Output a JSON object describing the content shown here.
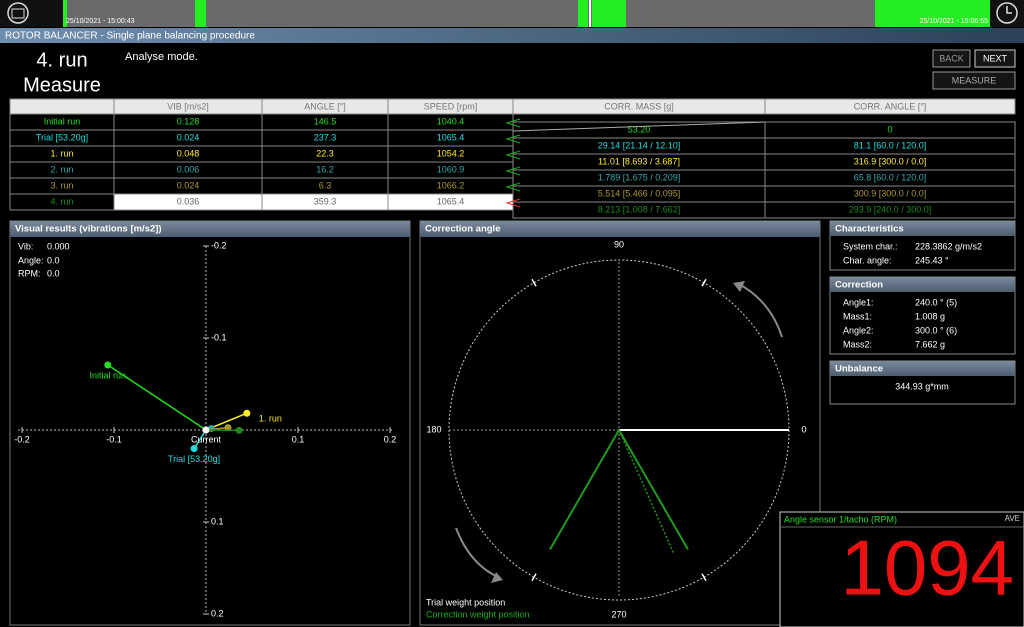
{
  "timeline": {
    "start": "25/10/2021 - 15:00:43",
    "end": "25/10/2021 - 15:06:55"
  },
  "title_bar": "ROTOR BALANCER - Single plane balancing procedure",
  "step": {
    "title": "4. run",
    "subtitle": "Measure",
    "mode": "Analyse mode."
  },
  "buttons": [
    "BACK",
    "NEXT",
    "MEASURE"
  ],
  "table": {
    "columns": [
      "VIB [m/s2]",
      "ANGLE [°]",
      "SPEED [rpm]"
    ],
    "corr_columns": [
      "CORR. MASS [g]",
      "CORR. ANGLE [°]"
    ],
    "rows": [
      {
        "name": "Initial run",
        "color": "#22dd22",
        "vib": 0.128,
        "angle": 146.5,
        "speed": 1040.4,
        "corr_mass": "53.20",
        "corr_angle": "0"
      },
      {
        "name": "Trial [53.20g]",
        "color": "#22dddd",
        "vib": 0.024,
        "angle": 237.3,
        "speed": 1065.4,
        "corr_mass": "29.14 [21.14 / 12.10]",
        "corr_angle": "81.1 [60.0 / 120.0]"
      },
      {
        "name": "1. run",
        "color": "#ffee22",
        "vib": 0.048,
        "angle": 22.3,
        "speed": 1054.2,
        "corr_mass": "11.01 [8.693 / 3.687]",
        "corr_angle": "316.9 [300.0 / 0.0]"
      },
      {
        "name": "2. run",
        "color": "#33aaaa",
        "vib": 0.006,
        "angle": 16.2,
        "speed": 1060.9,
        "corr_mass": "1.789 [1.675 / 0.209]",
        "corr_angle": "65.8 [60.0 / 120.0]"
      },
      {
        "name": "3. run",
        "color": "#aa9933",
        "vib": 0.024,
        "angle": 6.3,
        "speed": 1066.2,
        "corr_mass": "5.514 [5.466 / 0.095]",
        "corr_angle": "300.9 [300.0 / 0.0]"
      },
      {
        "name": "4. run",
        "color": "#1e8a1e",
        "vib": 0.036,
        "angle": 359.3,
        "speed": 1065.4,
        "corr_mass": "8.213 [1.008 / 7.662]",
        "corr_angle": "293.9 [240.0 / 300.0]"
      }
    ]
  },
  "visual": {
    "title": "Visual results (vibrations [m/s2])",
    "vib_label": "Vib:",
    "vib": "0.000",
    "angle_label": "Angle:",
    "angle": "0.0",
    "rpm_label": "RPM:",
    "rpm": "0.0",
    "current_label": "Current",
    "xticks": [
      -0.2,
      -0.1,
      0.1,
      0.2
    ],
    "yticks": [
      -0.2,
      -0.1,
      0.1,
      0.2
    ]
  },
  "correction_plot": {
    "title": "Correction angle",
    "labels": [
      "0",
      "90",
      "180",
      "270"
    ],
    "legend_trial": "Trial weight position",
    "legend_correction": "Correction weight position"
  },
  "characteristics": {
    "title": "Characteristics",
    "items": [
      {
        "label": "System char.:",
        "value": "228.3862 g/m/s2"
      },
      {
        "label": "Char. angle:",
        "value": "245.43 °"
      }
    ]
  },
  "correction": {
    "title": "Correction",
    "items": [
      {
        "label": "Angle1:",
        "value": "240.0 ° (5)"
      },
      {
        "label": "Mass1:",
        "value": "1.008 g"
      },
      {
        "label": "Angle2:",
        "value": "300.0 ° (6)"
      },
      {
        "label": "Mass2:",
        "value": "7.662 g"
      }
    ]
  },
  "unbalance": {
    "title": "Unbalance",
    "value": "344.93 g*mm"
  },
  "rpm_display": {
    "title": "Angle sensor 1/tacho (RPM)",
    "mode": "AVE",
    "value": "1094"
  }
}
